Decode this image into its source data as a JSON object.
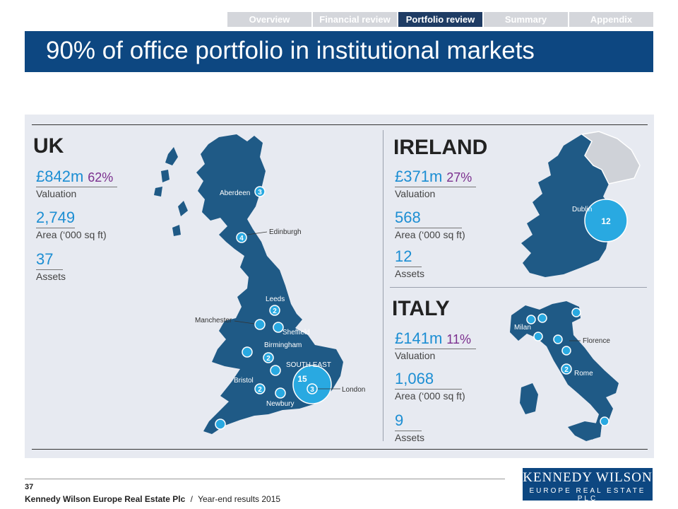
{
  "nav": {
    "tabs": [
      {
        "label": "Overview"
      },
      {
        "label": "Financial review"
      },
      {
        "label": "Portfolio review"
      },
      {
        "label": "Summary"
      },
      {
        "label": "Appendix"
      }
    ],
    "active": "Portfolio review"
  },
  "title": "90% of office portfolio in institutional markets",
  "uk": {
    "title": "UK",
    "valuation": "£842m",
    "valuation_pct": "62%",
    "valuation_label": "Valuation",
    "area": "2,749",
    "area_label": "Area (‘000 sq ft)",
    "assets": "37",
    "assets_label": "Assets",
    "map": {
      "aberdeen": "Aberdeen",
      "aberdeen_count": "3",
      "edinburgh": "Edinburgh",
      "edinburgh_count": "4",
      "leeds": "Leeds",
      "leeds_count": "2",
      "manchester": "Manchester",
      "sheffield": "Sheffield",
      "birmingham": "Birmingham",
      "birmingham_count": "2",
      "south_east": "SOUTH EAST",
      "south_east_count": "15",
      "bristol": "Bristol",
      "bristol_count": "2",
      "newbury": "Newbury",
      "london": "London",
      "london_count": "3"
    }
  },
  "ireland": {
    "title": "IRELAND",
    "valuation": "£371m",
    "valuation_pct": "27%",
    "valuation_label": "Valuation",
    "area": "568",
    "area_label": "Area (‘000 sq ft)",
    "assets": "12",
    "assets_label": "Assets",
    "map": {
      "dublin": "Dublin",
      "dublin_count": "12"
    }
  },
  "italy": {
    "title": "ITALY",
    "valuation": "£141m",
    "valuation_pct": "11%",
    "valuation_label": "Valuation",
    "area": "1,068",
    "area_label": "Area (‘000 sq ft)",
    "assets": "9",
    "assets_label": "Assets",
    "map": {
      "milan": "Milan",
      "florence": "Florence",
      "rome": "Rome",
      "rome_count": "2"
    }
  },
  "footer": {
    "page_number": "37",
    "company": "Kennedy Wilson Europe Real Estate Plc",
    "separator": "/",
    "subtitle": "Year-end results 2015",
    "logo_line1": "KENNEDY WILSON",
    "logo_line2": "EUROPE REAL ESTATE PLC"
  },
  "colors": {
    "title_bar": "#0d4781",
    "map_fill": "#1f5a86",
    "value_blue": "#1c8ed3",
    "pct_purple": "#7b2f8e",
    "panel_bg": "#e7eaf1",
    "marker": "#29a9e1"
  }
}
